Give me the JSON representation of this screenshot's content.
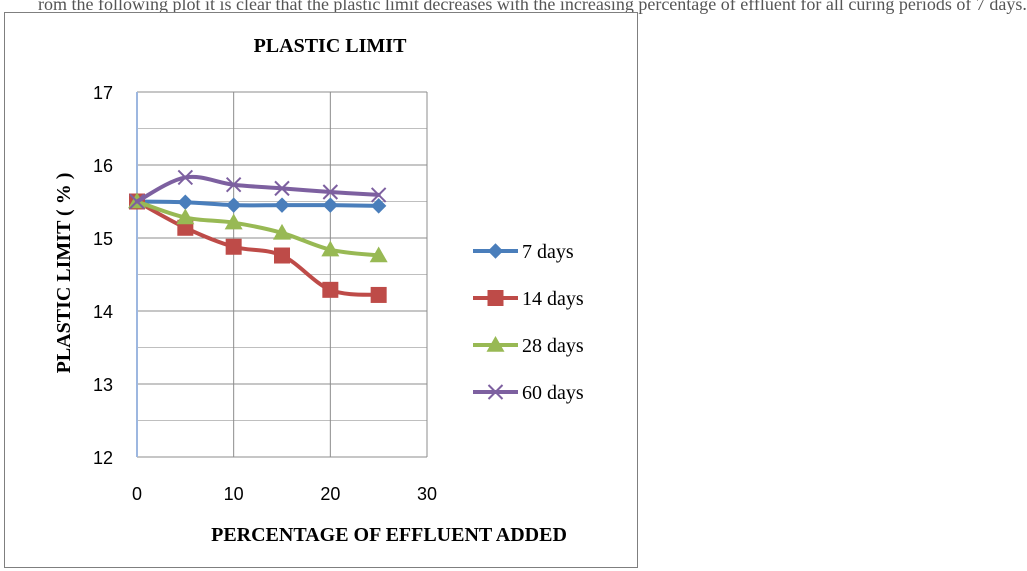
{
  "caption_fragment": "rom the following plot it is clear that the plastic limit decreases with the increasing percentage of effluent for all curing periods of 7 days.",
  "chart_data": {
    "type": "line",
    "title": "PLASTIC LIMIT",
    "xlabel": "PERCENTAGE OF EFFLUENT ADDED",
    "ylabel": "PLASTIC LIMIT ( % )",
    "xlim": [
      0,
      30
    ],
    "ylim": [
      12,
      17
    ],
    "xticks": [
      0,
      10,
      20,
      30
    ],
    "yticks": [
      12,
      13,
      14,
      15,
      16,
      17
    ],
    "grid": true,
    "legend_position": "right",
    "x": [
      0,
      5,
      10,
      15,
      20,
      25
    ],
    "series": [
      {
        "name": "7 days",
        "color": "#4a7ebb",
        "marker": "diamond",
        "values": [
          15.5,
          15.49,
          15.45,
          15.45,
          15.45,
          15.44
        ]
      },
      {
        "name": "14 days",
        "color": "#be4b48",
        "marker": "square",
        "values": [
          15.5,
          15.14,
          14.88,
          14.76,
          14.29,
          14.22
        ]
      },
      {
        "name": "28 days",
        "color": "#98b954",
        "marker": "triangle",
        "values": [
          15.5,
          15.28,
          15.21,
          15.07,
          14.84,
          14.76
        ]
      },
      {
        "name": "60 days",
        "color": "#7d60a0",
        "marker": "x",
        "values": [
          15.5,
          15.83,
          15.73,
          15.68,
          15.63,
          15.59
        ]
      }
    ]
  }
}
